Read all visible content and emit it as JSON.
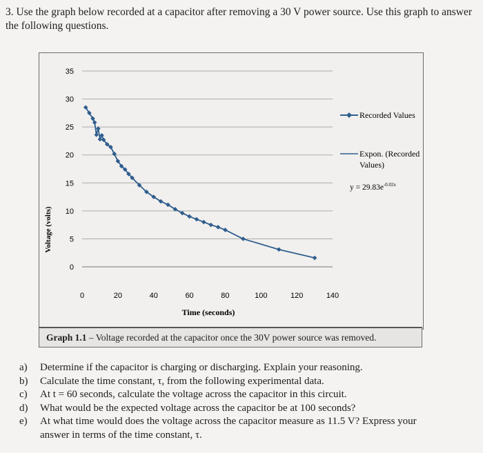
{
  "question": {
    "number": "3.",
    "text": "Use the graph below recorded at a capacitor after removing a 30 V power source. Use this graph to answer the following questions."
  },
  "caption": {
    "label": "Graph 1.1",
    "text": " – Voltage recorded at the capacitor once the 30V power source was removed."
  },
  "legend": {
    "recorded": "Recorded Values",
    "expon_line1": "Expon. (Recorded",
    "expon_line2": "Values)",
    "equation": "y = 29.83e",
    "equation_exp": "-0.02x"
  },
  "subquestions": [
    {
      "label": "a)",
      "text": "Determine if the capacitor is charging or discharging. Explain your reasoning."
    },
    {
      "label": "b)",
      "text": "Calculate the time constant, τ, from the following experimental data."
    },
    {
      "label": "c)",
      "text": "At t = 60 seconds, calculate the voltage across the capacitor in this circuit."
    },
    {
      "label": "d)",
      "text": "What would be the expected voltage across the capacitor be at 100 seconds?"
    },
    {
      "label": "e)",
      "text": "At what time would does the voltage across the capacitor measure as 11.5 V? Express your",
      "continuation": "answer in terms of the time constant, τ."
    }
  ],
  "chart_data": {
    "type": "scatter",
    "xlabel": "Time (seconds)",
    "ylabel": "Voltage (volts)",
    "xlim": [
      0,
      140
    ],
    "ylim": [
      0,
      35
    ],
    "xticks": [
      0,
      20,
      40,
      60,
      80,
      100,
      120,
      140
    ],
    "yticks": [
      0,
      5,
      10,
      15,
      20,
      25,
      30,
      35
    ],
    "grid": "horizontal",
    "legend_position": "right",
    "series": [
      {
        "name": "Recorded Values",
        "color": "#2f5d8e",
        "x": [
          2,
          4,
          6,
          7,
          8,
          9,
          10,
          11,
          12,
          14,
          16,
          18,
          20,
          22,
          24,
          26,
          28,
          32,
          36,
          40,
          44,
          48,
          52,
          56,
          60,
          64,
          68,
          72,
          76,
          80,
          90,
          110,
          130
        ],
        "y": [
          28.5,
          27.5,
          26.5,
          25.8,
          23.6,
          24.7,
          22.8,
          23.5,
          22.7,
          21.9,
          21.4,
          20.2,
          18.9,
          18.0,
          17.4,
          16.6,
          15.9,
          14.6,
          13.4,
          12.5,
          11.7,
          11.1,
          10.3,
          9.6,
          9.0,
          8.5,
          8.0,
          7.5,
          7.1,
          6.6,
          5.0,
          3.1,
          1.6
        ]
      }
    ]
  }
}
